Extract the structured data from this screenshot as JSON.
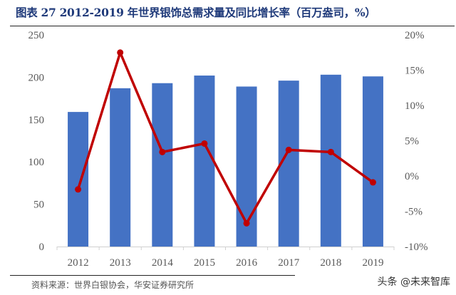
{
  "title": "图表 27 2012-2019 年世界银饰总需求量及同比增长率（百万盎司，%）",
  "source": "资料来源：世界白银协会，华安证券研究所",
  "watermark": "头条 @未来智库",
  "colors": {
    "bar": "#4472c4",
    "line": "#c00000",
    "title": "#1f3a7a",
    "axis_text": "#595959"
  },
  "chart_data": {
    "type": "bar+line",
    "title": "2012-2019 年世界银饰总需求量及同比增长率（百万盎司，%）",
    "xlabel": "",
    "categories": [
      "2012",
      "2013",
      "2014",
      "2015",
      "2016",
      "2017",
      "2018",
      "2019"
    ],
    "series": [
      {
        "name": "银饰总需求量（百万盎司）",
        "type": "bar",
        "axis": "left",
        "values": [
          159,
          187,
          193,
          202,
          189,
          196,
          203,
          201
        ]
      },
      {
        "name": "同比增长率（%）",
        "type": "line",
        "axis": "right",
        "values": [
          -1.9,
          17.5,
          3.4,
          4.6,
          -6.7,
          3.7,
          3.4,
          -0.9
        ]
      }
    ],
    "left_axis": {
      "ylim": [
        0,
        250
      ],
      "ticks": [
        "0",
        "50",
        "100",
        "150",
        "200",
        "250"
      ]
    },
    "right_axis": {
      "ylim": [
        -10,
        20
      ],
      "ticks": [
        "-10%",
        "-5%",
        "0%",
        "5%",
        "10%",
        "15%",
        "20%"
      ]
    },
    "grid": false,
    "legend": "none"
  }
}
